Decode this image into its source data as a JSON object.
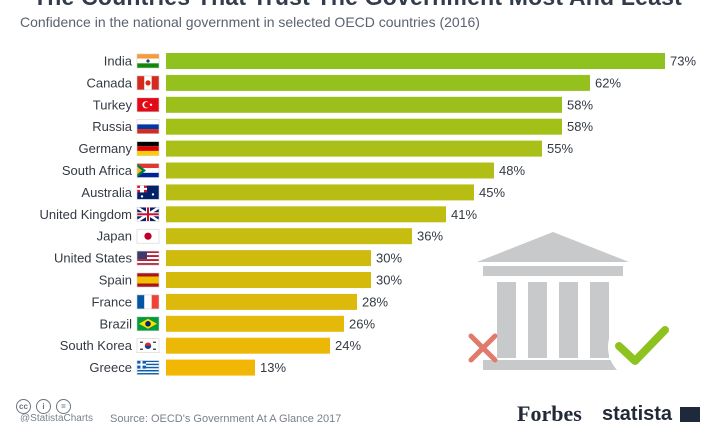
{
  "title": "The Countries That Trust The Government Most And Least",
  "subtitle": "Confidence in the national government in selected OECD countries (2016)",
  "credit": "@StatistaCharts",
  "source": "Source: OECD's Government At A Glance 2017",
  "brand_left": "Forbes",
  "brand_right": "statista",
  "colors": {
    "bar_high": "#8dc21f",
    "bar_low": "#f2b705",
    "cross": "#e07b6b",
    "check": "#8dc21f",
    "building": "#c8c9cb"
  },
  "icons": [
    "government-building-icon",
    "cross-icon",
    "checkmark-icon",
    "creative-commons-icons",
    "statista-logo-icon"
  ],
  "chart_data": {
    "type": "bar",
    "orientation": "horizontal",
    "categories": [
      "India",
      "Canada",
      "Turkey",
      "Russia",
      "Germany",
      "South Africa",
      "Australia",
      "United Kingdom",
      "Japan",
      "United States",
      "Spain",
      "France",
      "Brazil",
      "South Korea",
      "Greece"
    ],
    "values": [
      73,
      62,
      58,
      58,
      55,
      48,
      45,
      41,
      36,
      30,
      30,
      28,
      26,
      24,
      13
    ],
    "labels": [
      "73%",
      "62%",
      "58%",
      "58%",
      "55%",
      "48%",
      "45%",
      "41%",
      "36%",
      "30%",
      "30%",
      "28%",
      "26%",
      "24%",
      "13%"
    ],
    "flags": [
      "flag-india",
      "flag-canada",
      "flag-turkey",
      "flag-russia",
      "flag-germany",
      "flag-south-africa",
      "flag-australia",
      "flag-united-kingdom",
      "flag-japan",
      "flag-united-states",
      "flag-spain",
      "flag-france",
      "flag-brazil",
      "flag-south-korea",
      "flag-greece"
    ],
    "unit": "%",
    "xlim": [
      0,
      73
    ],
    "grid": false,
    "legend": "none"
  }
}
